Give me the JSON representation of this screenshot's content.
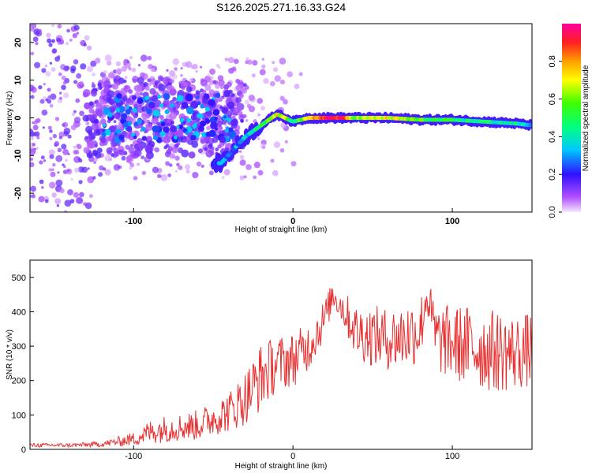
{
  "title": "S126.2025.271.16.33.G24",
  "chart_data": [
    {
      "type": "heatmap",
      "xlabel": "Height of straight line (km)",
      "ylabel": "Frequency (Hz)",
      "xlim": [
        -165,
        150
      ],
      "ylim": [
        -25,
        25
      ],
      "xticks": [
        -100,
        0,
        100
      ],
      "xtick_labels": [
        "-100",
        "0",
        "100"
      ],
      "yticks": [
        -20,
        -10,
        0,
        10,
        20
      ],
      "ytick_labels": [
        "-20",
        "-10",
        "0",
        "10",
        "20"
      ],
      "colorbar": {
        "label": "Normalized spectral amplitude",
        "range": [
          0,
          1
        ],
        "ticks": [
          0.0,
          0.2,
          0.4,
          0.6,
          0.8
        ],
        "tick_labels": [
          "0.0",
          "0.2",
          "0.4",
          "0.6",
          "0.8"
        ]
      },
      "ridge": {
        "x": [
          -45,
          -30,
          -20,
          -10,
          0,
          10,
          20,
          30,
          40,
          60,
          80,
          100,
          120,
          140,
          150
        ],
        "frequency": [
          -12,
          -5,
          -2,
          1,
          -1,
          0,
          0,
          0,
          0,
          0,
          -0.5,
          -0.5,
          -1,
          -1.5,
          -2
        ],
        "amplitude": [
          0.25,
          0.3,
          0.45,
          0.7,
          0.5,
          0.65,
          0.95,
          0.9,
          0.6,
          0.7,
          0.55,
          0.45,
          0.45,
          0.4,
          0.35
        ]
      }
    },
    {
      "type": "line",
      "xlabel": "Height of straight line (km)",
      "ylabel": "SNR (10 * v/v)",
      "xlim": [
        -165,
        150
      ],
      "ylim": [
        0,
        550
      ],
      "xticks": [
        -100,
        0,
        100
      ],
      "xtick_labels": [
        "-100",
        "0",
        "100"
      ],
      "yticks": [
        0,
        100,
        200,
        300,
        400,
        500
      ],
      "ytick_labels": [
        "0",
        "100",
        "200",
        "300",
        "400",
        "500"
      ],
      "series": [
        {
          "name": "SNR",
          "color": "#e83030",
          "x": [
            -165,
            -140,
            -120,
            -100,
            -90,
            -80,
            -70,
            -60,
            -50,
            -40,
            -30,
            -20,
            -10,
            0,
            10,
            20,
            25,
            30,
            40,
            50,
            60,
            70,
            80,
            84,
            90,
            100,
            110,
            120,
            130,
            140,
            150
          ],
          "mean": [
            12,
            12,
            15,
            30,
            50,
            60,
            65,
            70,
            90,
            110,
            150,
            210,
            250,
            260,
            300,
            380,
            450,
            420,
            340,
            330,
            320,
            330,
            350,
            450,
            320,
            310,
            300,
            290,
            285,
            280,
            290
          ],
          "spread": [
            6,
            6,
            8,
            20,
            35,
            40,
            40,
            45,
            50,
            60,
            80,
            100,
            80,
            80,
            70,
            60,
            40,
            50,
            80,
            90,
            90,
            100,
            100,
            60,
            100,
            110,
            120,
            120,
            120,
            110,
            110
          ]
        }
      ]
    }
  ]
}
